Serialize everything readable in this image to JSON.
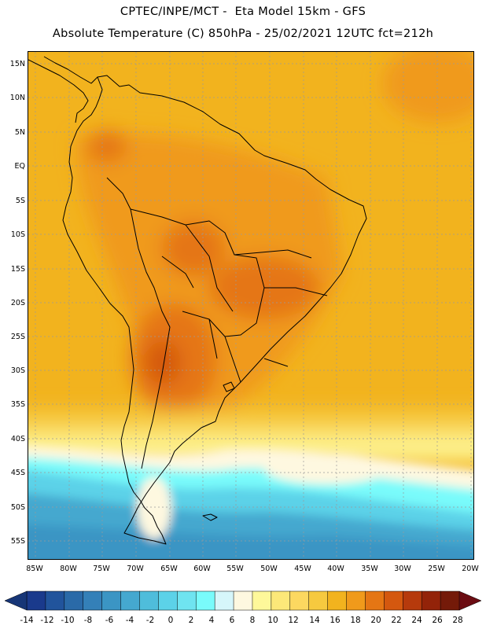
{
  "title": {
    "line1": "CPTEC/INPE/MCT -  Eta Model 15km - GFS",
    "line2": "Absolute Temperature (C) 850hPa - 25/02/2021 12UTC fct=212h"
  },
  "map": {
    "lat_labels": [
      "15N",
      "10N",
      "5N",
      "EQ",
      "5S",
      "10S",
      "15S",
      "20S",
      "25S",
      "30S",
      "35S",
      "40S",
      "45S",
      "50S",
      "55S"
    ],
    "lon_labels": [
      "85W",
      "80W",
      "75W",
      "70W",
      "65W",
      "60W",
      "55W",
      "50W",
      "45W",
      "40W",
      "35W",
      "30W",
      "25W",
      "20W"
    ]
  },
  "colorbar": {
    "labels": [
      "-14",
      "-12",
      "-10",
      "-8",
      "-6",
      "-4",
      "-2",
      "0",
      "2",
      "4",
      "6",
      "8",
      "10",
      "12",
      "14",
      "16",
      "18",
      "20",
      "22",
      "24",
      "26",
      "28"
    ],
    "colors": [
      "#1a3a8c",
      "#21549c",
      "#2a6aa8",
      "#3480b8",
      "#3b95c4",
      "#45a8cf",
      "#4fbddb",
      "#5cd2e8",
      "#6fe4f0",
      "#79fbfb",
      "#d6f6fa",
      "#fef8e0",
      "#fef89a",
      "#fce879",
      "#fcd860",
      "#f6c93f",
      "#f2b31e",
      "#f09a1b",
      "#e57614",
      "#d4580f",
      "#b63a0c",
      "#932309",
      "#741a09"
    ],
    "under_color": "#173677",
    "over_color": "#6b0c12"
  }
}
